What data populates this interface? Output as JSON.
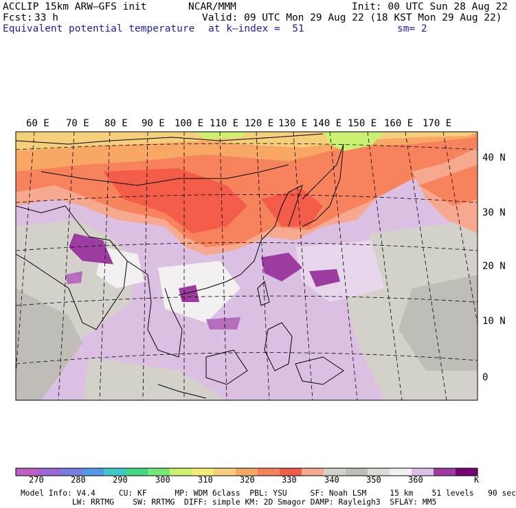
{
  "header": {
    "model_title": "ACCLIP 15km ARW–GFS init",
    "center": "NCAR/MMM",
    "init": "Init: 00 UTC Sun 28 Aug 22",
    "fcst_label": "Fcst:",
    "fcst_value": "33 h",
    "valid": "Valid: 09 UTC Mon 29 Aug 22 (18 KST Mon 29 Aug 22)",
    "field": "Equivalent potential temperature",
    "level": "at k–index =  51",
    "smooth": "sm= 2"
  },
  "map": {
    "longitude_labels": [
      "60 E",
      "70 E",
      "80 E",
      "90 E",
      "100 E",
      "110 E",
      "120 E",
      "130 E",
      "140 E",
      "150 E",
      "160 E",
      "170 E"
    ],
    "latitude_labels": [
      "40 N",
      "30 N",
      "20 N",
      "10 N",
      "0"
    ]
  },
  "colorbar": {
    "unit": "K",
    "tick_labels": [
      "270",
      "280",
      "290",
      "300",
      "310",
      "320",
      "330",
      "340",
      "350",
      "360"
    ],
    "colors": [
      "#c05fc8",
      "#9a66d2",
      "#7a7ae0",
      "#5598e8",
      "#3fc8c8",
      "#45d68a",
      "#76e877",
      "#ccf070",
      "#f6ec7a",
      "#f6cf7a",
      "#f8a765",
      "#f7835d",
      "#f45c4a",
      "#f6a98f",
      "#d4d1cb",
      "#c0bdb8",
      "#dedbd7",
      "#f2f0f0",
      "#dcc0e3",
      "#9c3ba0",
      "#760074"
    ],
    "note": ""
  },
  "footer": {
    "line1": "Model Info: V4.4     CU: KF      MP: WDM 6class  PBL: YSU     SF: Noah LSM     15 km    51 levels   90 sec",
    "line2": "           LW: RRTMG    SW: RRTMG  DIFF: simple KM: 2D Smagor DAMP: Rayleigh3  SFLAY: MM5"
  }
}
